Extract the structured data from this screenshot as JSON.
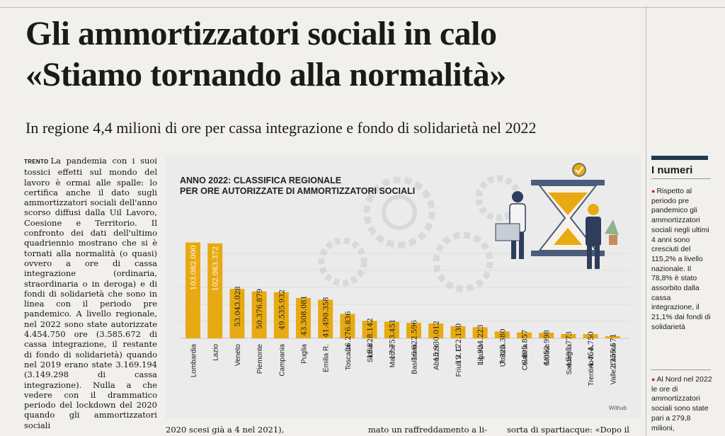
{
  "headline": {
    "line1": "Gli ammortizzatori sociali in calo",
    "line2": "«Stiamo tornando alla normalità»"
  },
  "subhead": "In regione 4,4 milioni di ore per cassa integrazione e fondo di solidarietà nel 2022",
  "article": {
    "place": "TRENTO",
    "body": "La pandemia con i suoi tossici effetti sul mondo del lavoro è ormai alle spalle: lo certifica anche il dato sugli ammortizzatori sociali dell'anno scorso diffusi dalla Uil Lavoro, Coesione e Territorio. Il confronto dei dati dell'ultimo quadriennio mostrano che si è tornati alla normalità (o quasi) ovvero a ore di cassa integrazione (ordinaria, straordinaria o in deroga) e di fondi di solidarietà che sono in linea con il periodo pre pandemico. A livello regionale, nel 2022 sono state autorizzate 4.454.750 ore (3.585.672 di cassa integrazione, il restante di fondo di solidarietà) quando nel 2019 erano state 3.169.194 (3.149.298 di cassa integrazione). Nulla a che vedere con il drammatico periodo del lockdown del 2020 quando gli ammortizzatori sociali"
  },
  "bottom": {
    "col2": "2020 scesi già a 4 nel 2021),",
    "col3": "mato un raffreddamento a li-",
    "col4": "sorta di spartiacque: «Dopo il"
  },
  "sidebar": {
    "title": "I numeri",
    "item1": "Rispetto al periodo pre pandemico gli ammortizzatori sociali negli ultimi 4 anni sono cresciuti del 115,2% a livello nazionale. Il 78,8% è stato assorbito dalla cassa integrazione, il 21,1% dai fondi di solidarietà",
    "item2": "Al Nord nel 2022 le ore di ammortizzatori sociali sono state pari a 279,8 milioni,"
  },
  "credit": "Withub",
  "chart_data": {
    "type": "bar",
    "title": "ANNO 2022: CLASSIFICA REGIONALE PER ORE AUTORIZZATE DI AMMORTIZZATORI SOCIALI",
    "title_line1": "ANNO 2022: CLASSIFICA REGIONALE",
    "title_line2": "PER ORE AUTORIZZATE DI AMMORTIZZATORI SOCIALI",
    "categories": [
      "Lombardia",
      "Lazio",
      "Veneto",
      "Piemonte",
      "Campania",
      "Puglia",
      "Emilia R.",
      "Toscana",
      "Sicilia",
      "Marche",
      "Basilicata",
      "Abruzzo",
      "Friuli V. G.",
      "Liguria",
      "Umbria",
      "Calabria",
      "Molise",
      "Sardegna",
      "Trentino A. A.",
      "Valle d'Aosta"
    ],
    "values": [
      103082000,
      102083372,
      53043028,
      50376879,
      49535932,
      43308081,
      41490358,
      26276836,
      18828142,
      17753451,
      16622596,
      15930012,
      13172130,
      11924223,
      7325380,
      6405857,
      6052998,
      4597773,
      4454750,
      2255571
    ],
    "value_labels": [
      "103.082.000",
      "102.083.372",
      "53.043.028",
      "50.376.879",
      "49.535.932",
      "43.308.081",
      "41.490.358",
      "26.276.836",
      "18.828.142",
      "17.753.451",
      "16.622.596",
      "15.930.012",
      "13.172.130",
      "11.924.223",
      "7.325.380",
      "6.405.857",
      "6.052.998",
      "4.597.773",
      "4.454.750",
      "2.255.571"
    ],
    "ylim": [
      0,
      105000000
    ],
    "colors": {
      "bar": "#e8aa12",
      "bar_light": "#f2c347",
      "grid": "#cfcfcf"
    }
  }
}
